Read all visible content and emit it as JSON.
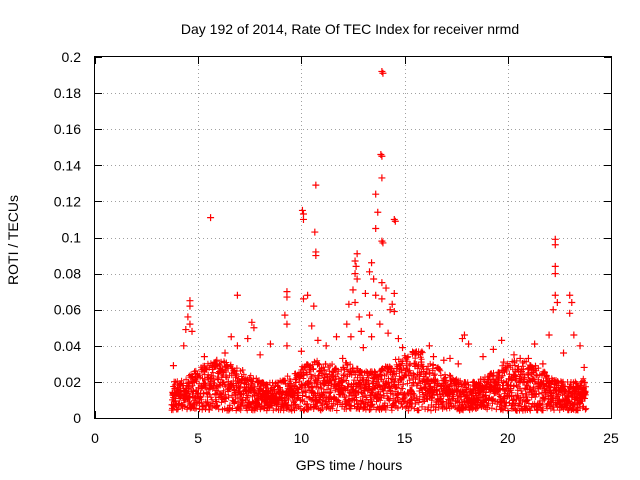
{
  "chart_data": {
    "type": "scatter",
    "title": "Day 192 of 2014, Rate Of TEC Index for receiver nrmd",
    "xlabel": "GPS time / hours",
    "ylabel": "ROTI / TECUs",
    "xlim": [
      0,
      25
    ],
    "ylim": [
      0,
      0.2
    ],
    "x_ticks": [
      0,
      5,
      10,
      15,
      20,
      25
    ],
    "y_ticks": [
      0,
      0.02,
      0.04,
      0.06,
      0.08,
      0.1,
      0.12,
      0.14,
      0.16,
      0.18,
      0.2
    ],
    "x_tick_labels": [
      "0",
      "5",
      "10",
      "15",
      "20",
      "25"
    ],
    "y_tick_labels": [
      "0",
      "0.02",
      "0.04",
      "0.06",
      "0.08",
      "0.1",
      "0.12",
      "0.14",
      "0.16",
      "0.18",
      "0.2"
    ],
    "grid": true,
    "marker": "+",
    "marker_color": "#ff0000",
    "data_range_hours": [
      3.7,
      23.8
    ],
    "series": [
      {
        "name": "ROTI",
        "points": [
          [
            5.6,
            0.111
          ],
          [
            13.9,
            0.192
          ],
          [
            13.95,
            0.191
          ],
          [
            13.85,
            0.146
          ],
          [
            13.9,
            0.145
          ],
          [
            13.9,
            0.133
          ],
          [
            10.7,
            0.129
          ],
          [
            13.6,
            0.124
          ],
          [
            10.05,
            0.115
          ],
          [
            10.1,
            0.113
          ],
          [
            10.1,
            0.11
          ],
          [
            14.5,
            0.11
          ],
          [
            14.55,
            0.109
          ],
          [
            13.7,
            0.114
          ],
          [
            10.65,
            0.103
          ],
          [
            13.6,
            0.105
          ],
          [
            13.9,
            0.098
          ],
          [
            13.95,
            0.097
          ],
          [
            22.3,
            0.099
          ],
          [
            22.3,
            0.096
          ],
          [
            10.7,
            0.092
          ],
          [
            10.7,
            0.09
          ],
          [
            12.7,
            0.091
          ],
          [
            12.6,
            0.087
          ],
          [
            12.65,
            0.084
          ],
          [
            13.4,
            0.086
          ],
          [
            22.3,
            0.084
          ],
          [
            22.3,
            0.08
          ],
          [
            12.6,
            0.08
          ],
          [
            12.7,
            0.077
          ],
          [
            13.3,
            0.081
          ],
          [
            13.5,
            0.077
          ],
          [
            13.9,
            0.075
          ],
          [
            14.1,
            0.072
          ],
          [
            12.5,
            0.071
          ],
          [
            9.3,
            0.07
          ],
          [
            9.3,
            0.067
          ],
          [
            6.9,
            0.068
          ],
          [
            10.3,
            0.068
          ],
          [
            13.1,
            0.069
          ],
          [
            13.6,
            0.068
          ],
          [
            14.5,
            0.069
          ],
          [
            22.3,
            0.068
          ],
          [
            23.0,
            0.068
          ],
          [
            4.6,
            0.065
          ],
          [
            4.6,
            0.062
          ],
          [
            10.1,
            0.066
          ],
          [
            13.9,
            0.066
          ],
          [
            23.1,
            0.064
          ],
          [
            22.4,
            0.064
          ],
          [
            10.6,
            0.062
          ],
          [
            12.3,
            0.063
          ],
          [
            12.6,
            0.064
          ],
          [
            14.4,
            0.063
          ],
          [
            14.3,
            0.06
          ],
          [
            14.5,
            0.059
          ],
          [
            9.2,
            0.057
          ],
          [
            12.8,
            0.056
          ],
          [
            13.3,
            0.057
          ],
          [
            4.5,
            0.056
          ],
          [
            23.0,
            0.058
          ],
          [
            22.2,
            0.06
          ],
          [
            7.6,
            0.053
          ],
          [
            4.6,
            0.052
          ],
          [
            7.7,
            0.05
          ],
          [
            9.3,
            0.052
          ],
          [
            10.5,
            0.051
          ],
          [
            12.2,
            0.052
          ],
          [
            13.8,
            0.052
          ],
          [
            4.4,
            0.049
          ],
          [
            4.7,
            0.048
          ],
          [
            12.9,
            0.048
          ],
          [
            14.2,
            0.047
          ],
          [
            17.9,
            0.046
          ],
          [
            17.8,
            0.044
          ],
          [
            22.0,
            0.046
          ],
          [
            23.2,
            0.046
          ],
          [
            6.6,
            0.045
          ],
          [
            7.4,
            0.044
          ],
          [
            11.7,
            0.045
          ],
          [
            12.4,
            0.045
          ],
          [
            13.4,
            0.045
          ],
          [
            14.7,
            0.044
          ],
          [
            19.7,
            0.043
          ],
          [
            21.3,
            0.041
          ],
          [
            10.8,
            0.043
          ],
          [
            18.1,
            0.041
          ],
          [
            9.3,
            0.04
          ],
          [
            16.2,
            0.04
          ],
          [
            4.3,
            0.04
          ],
          [
            6.9,
            0.04
          ],
          [
            8.5,
            0.041
          ],
          [
            11.2,
            0.04
          ],
          [
            13.0,
            0.039
          ],
          [
            14.9,
            0.039
          ],
          [
            19.3,
            0.038
          ],
          [
            23.5,
            0.04
          ],
          [
            5.3,
            0.034
          ],
          [
            6.3,
            0.036
          ],
          [
            10.0,
            0.037
          ],
          [
            15.5,
            0.036
          ],
          [
            20.3,
            0.035
          ],
          [
            22.7,
            0.036
          ],
          [
            16.4,
            0.034
          ],
          [
            8.0,
            0.035
          ],
          [
            17.2,
            0.033
          ],
          [
            18.8,
            0.034
          ],
          [
            21.0,
            0.033
          ],
          [
            5.9,
            0.032
          ],
          [
            12.0,
            0.033
          ],
          [
            16.9,
            0.032
          ],
          [
            20.6,
            0.033
          ],
          [
            19.8,
            0.031
          ],
          [
            3.8,
            0.029
          ],
          [
            15.8,
            0.031
          ],
          [
            17.6,
            0.03
          ],
          [
            21.7,
            0.03
          ],
          [
            23.7,
            0.028
          ]
        ]
      }
    ]
  }
}
